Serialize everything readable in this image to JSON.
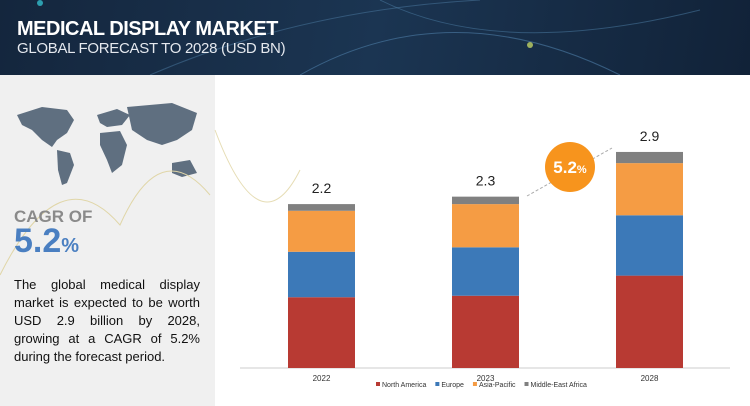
{
  "header": {
    "title": "MEDICAL DISPLAY MARKET",
    "subtitle": "GLOBAL FORECAST TO 2028 (USD BN)"
  },
  "left": {
    "cagr_label": "CAGR OF",
    "cagr_value": "5.2",
    "cagr_unit": "%",
    "description": "The global medical display market is expected to be worth USD 2.9 billion by 2028, growing at a CAGR of 5.2% during the forecast period."
  },
  "bubble": {
    "value": "5.2",
    "unit": "%"
  },
  "chart_data": {
    "type": "bar",
    "stacked": true,
    "categories": [
      "2022",
      "2023",
      "2028"
    ],
    "totals_labels": [
      "2.2",
      "2.3",
      "2.9"
    ],
    "totals": [
      2.2,
      2.3,
      2.9
    ],
    "series": [
      {
        "name": "North America",
        "color": "#b83a33",
        "values": [
          0.95,
          0.97,
          1.24
        ]
      },
      {
        "name": "Europe",
        "color": "#3c79b8",
        "values": [
          0.61,
          0.65,
          0.81
        ]
      },
      {
        "name": "Asia-Pacific",
        "color": "#f59c44",
        "values": [
          0.55,
          0.58,
          0.7
        ]
      },
      {
        "name": "Middle-East Africa",
        "color": "#808080",
        "values": [
          0.09,
          0.1,
          0.15
        ]
      }
    ],
    "legend": "bottom",
    "grid": false
  }
}
